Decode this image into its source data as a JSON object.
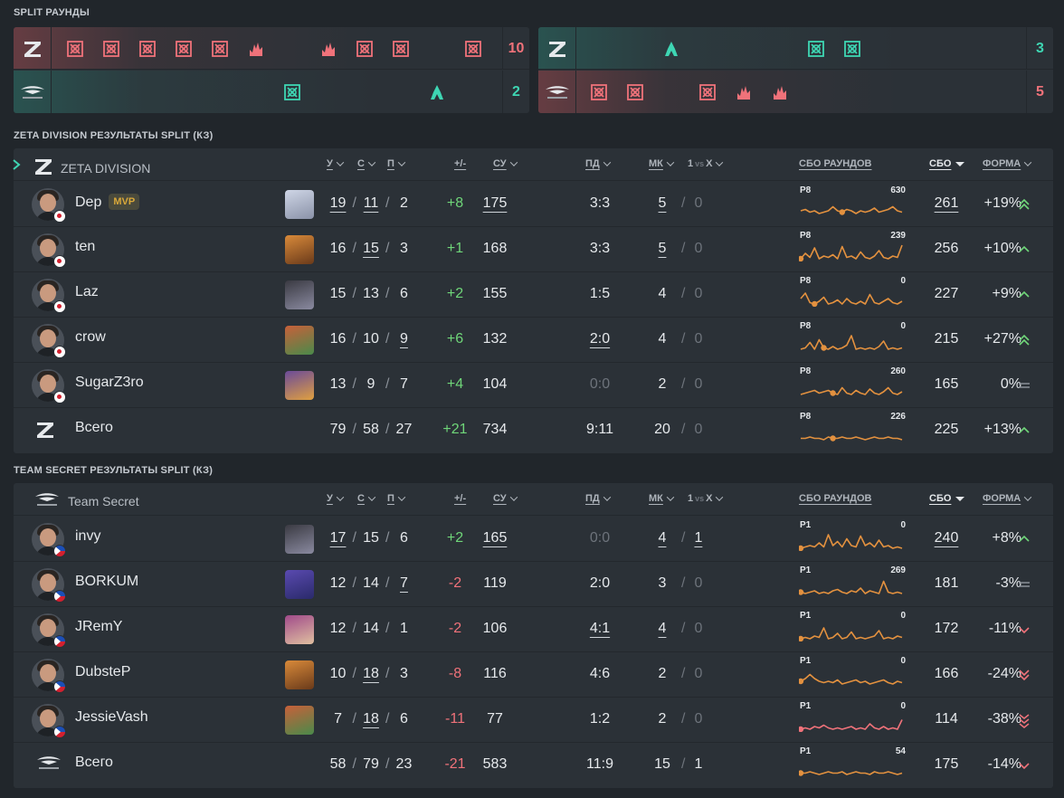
{
  "split_title": "SPLIT РАУНДЫ",
  "split": {
    "left": {
      "top_score": "10",
      "bottom_score": "2"
    },
    "right": {
      "top_score": "3",
      "bottom_score": "5"
    }
  },
  "colors": {
    "red": "#f0727a",
    "teal": "#3ed6b3",
    "green": "#6fd679",
    "orange": "#e3913f"
  },
  "zeta": {
    "section_title": "ZETA DIVISION РЕЗУЛЬТАТЫ SPLIT (КЗ)",
    "team_name": "ZETA DIVISION",
    "headers": {
      "k": "У",
      "d": "С",
      "a": "П",
      "pm": "+/-",
      "adr": "СУ",
      "fk": "ПД",
      "mk": "МК",
      "clutch_a": "1",
      "clutch_b": "vs",
      "clutch_c": "X",
      "rounds": "СБО РАУНДОВ",
      "acs": "СБО",
      "form": "ФОРМА"
    },
    "players": [
      {
        "name": "Dep",
        "mvp": "MVP",
        "k": "19",
        "d": "11",
        "a": "2",
        "pm": "+8",
        "adr": "175",
        "fk": "3:3",
        "mk": "5",
        "cl": "0",
        "spark_label": "P8",
        "spark_max": "630",
        "acs": "261",
        "form": "+19%",
        "trend": "double-up"
      },
      {
        "name": "ten",
        "k": "16",
        "d": "15",
        "a": "3",
        "pm": "+1",
        "adr": "168",
        "fk": "3:3",
        "mk": "5",
        "cl": "0",
        "spark_label": "P8",
        "spark_max": "239",
        "acs": "256",
        "form": "+10%",
        "trend": "up"
      },
      {
        "name": "Laz",
        "k": "15",
        "d": "13",
        "a": "6",
        "pm": "+2",
        "adr": "155",
        "fk": "1:5",
        "mk": "4",
        "cl": "0",
        "spark_label": "P8",
        "spark_max": "0",
        "acs": "227",
        "form": "+9%",
        "trend": "up"
      },
      {
        "name": "crow",
        "k": "16",
        "d": "10",
        "a": "9",
        "pm": "+6",
        "adr": "132",
        "fk": "2:0",
        "mk": "4",
        "cl": "0",
        "spark_label": "P8",
        "spark_max": "0",
        "acs": "215",
        "form": "+27%",
        "trend": "double-up"
      },
      {
        "name": "SugarZ3ro",
        "k": "13",
        "d": "9",
        "a": "7",
        "pm": "+4",
        "adr": "104",
        "fk": "0:0",
        "mk": "2",
        "cl": "0",
        "spark_label": "P8",
        "spark_max": "260",
        "acs": "165",
        "form": "0%",
        "trend": "equal"
      },
      {
        "name": "Всего",
        "k": "79",
        "d": "58",
        "a": "27",
        "pm": "+21",
        "adr": "734",
        "fk": "9:11",
        "mk": "20",
        "cl": "0",
        "spark_label": "P8",
        "spark_max": "226",
        "acs": "225",
        "form": "+13%",
        "trend": "up"
      }
    ]
  },
  "secret": {
    "section_title": "TEAM SECRET РЕЗУЛЬТАТЫ SPLIT (КЗ)",
    "team_name": "Team Secret",
    "headers": {
      "k": "У",
      "d": "С",
      "a": "П",
      "pm": "+/-",
      "adr": "СУ",
      "fk": "ПД",
      "mk": "МК",
      "clutch_a": "1",
      "clutch_b": "vs",
      "clutch_c": "X",
      "rounds": "СБО РАУНДОВ",
      "acs": "СБО",
      "form": "ФОРМА"
    },
    "players": [
      {
        "name": "invy",
        "k": "17",
        "d": "15",
        "a": "6",
        "pm": "+2",
        "adr": "165",
        "fk": "0:0",
        "mk": "4",
        "cl": "1",
        "spark_label": "P1",
        "spark_max": "0",
        "acs": "240",
        "form": "+8%",
        "trend": "up"
      },
      {
        "name": "BORKUM",
        "k": "12",
        "d": "14",
        "a": "7",
        "pm": "-2",
        "adr": "119",
        "fk": "2:0",
        "mk": "3",
        "cl": "0",
        "spark_label": "P1",
        "spark_max": "269",
        "acs": "181",
        "form": "-3%",
        "trend": "equal"
      },
      {
        "name": "JRemY",
        "k": "12",
        "d": "14",
        "a": "1",
        "pm": "-2",
        "adr": "106",
        "fk": "4:1",
        "mk": "4",
        "cl": "0",
        "spark_label": "P1",
        "spark_max": "0",
        "acs": "172",
        "form": "-11%",
        "trend": "down"
      },
      {
        "name": "DubsteP",
        "k": "10",
        "d": "18",
        "a": "3",
        "pm": "-8",
        "adr": "116",
        "fk": "4:6",
        "mk": "2",
        "cl": "0",
        "spark_label": "P1",
        "spark_max": "0",
        "acs": "166",
        "form": "-24%",
        "trend": "double-down"
      },
      {
        "name": "JessieVash",
        "k": "7",
        "d": "18",
        "a": "6",
        "pm": "-11",
        "adr": "77",
        "fk": "1:2",
        "mk": "2",
        "cl": "0",
        "spark_label": "P1",
        "spark_max": "0",
        "acs": "114",
        "form": "-38%",
        "trend": "triple-down"
      },
      {
        "name": "Всего",
        "k": "58",
        "d": "79",
        "a": "23",
        "pm": "-21",
        "adr": "583",
        "fk": "11:9",
        "mk": "15",
        "cl": "1",
        "spark_label": "P1",
        "spark_max": "54",
        "acs": "175",
        "form": "-14%",
        "trend": "down"
      }
    ]
  }
}
